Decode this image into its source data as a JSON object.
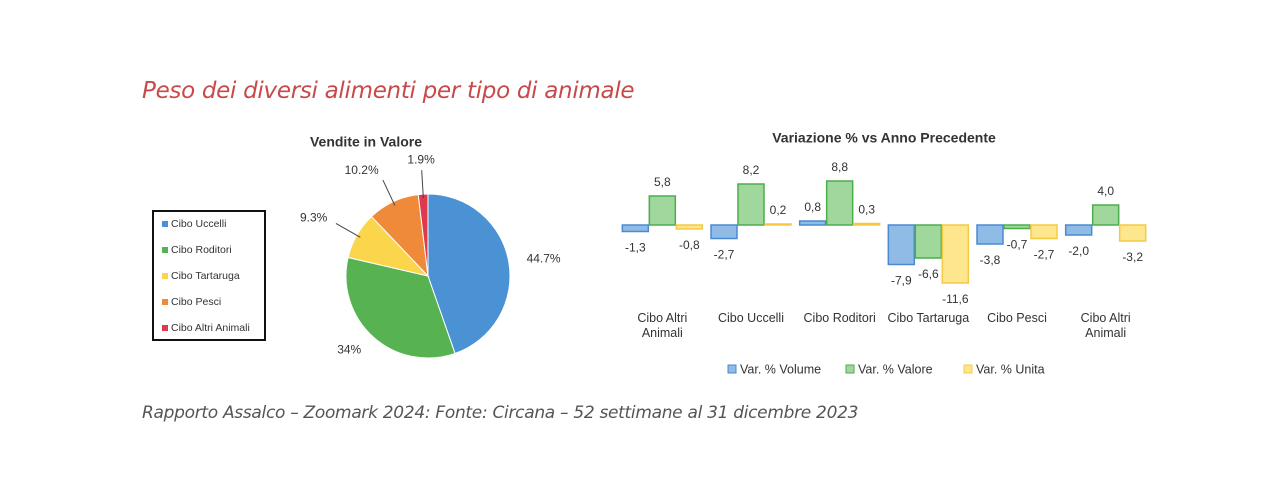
{
  "header": {
    "title": "Peso dei diversi alimenti per tipo di animale"
  },
  "footer": {
    "source": "Rapporto Assalco – Zoomark 2024: Fonte: Circana – 52 settimane al 31 dicembre 2023"
  },
  "chart_data": [
    {
      "type": "pie",
      "title": "Vendite in Valore",
      "categories": [
        "Cibo Uccelli",
        "Cibo Roditori",
        "Cibo Tartaruga",
        "Cibo Pesci",
        "Cibo Altri Animali"
      ],
      "values": [
        44.7,
        34,
        9.3,
        10.2,
        1.9
      ],
      "value_labels": [
        "44.7%",
        "34%",
        "9.3%",
        "10.2%",
        "1.9%"
      ],
      "colors": [
        "#4a92d4",
        "#57b351",
        "#fbd54c",
        "#ef8a3a",
        "#de3a4e"
      ],
      "legend": "left"
    },
    {
      "type": "bar",
      "title": "Variazione % vs Anno Precedente",
      "categories": [
        "Cibo Altri Animali",
        "Cibo Uccelli",
        "Cibo Roditori",
        "Cibo Tartaruga",
        "Cibo Pesci",
        "Cibo Altri Animali"
      ],
      "series": [
        {
          "name": "Var. % Volume",
          "color": "#4a8ad0",
          "values": [
            -1.3,
            -2.7,
            0.8,
            -7.9,
            -3.8,
            -2.0
          ],
          "value_labels": [
            "-1,3",
            "-2,7",
            "0,8",
            "-7,9",
            "-3,8",
            "-2,0"
          ]
        },
        {
          "name": "Var. % Valore",
          "color": "#4cad4c",
          "values": [
            5.8,
            8.2,
            8.8,
            -6.6,
            -0.7,
            4.0
          ],
          "value_labels": [
            "5,8",
            "8,2",
            "8,8",
            "-6,6",
            "-0,7",
            "4,0"
          ]
        },
        {
          "name": "Var. % Unita",
          "color": "#f5c842",
          "values": [
            -0.8,
            0.2,
            0.3,
            -11.6,
            -2.7,
            -3.2
          ],
          "value_labels": [
            "-0,8",
            "0,2",
            "0,3",
            "-11,6",
            "-2,7",
            "-3,2"
          ]
        }
      ],
      "legend": "bottom"
    }
  ]
}
